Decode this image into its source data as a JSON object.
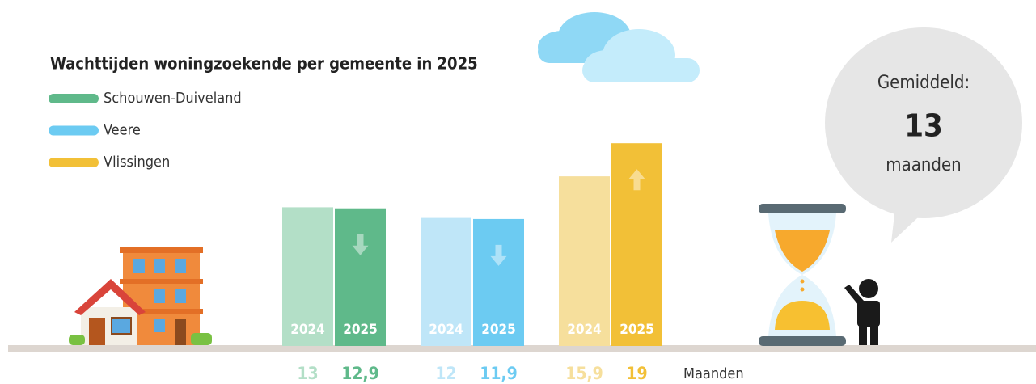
{
  "chart_data": {
    "type": "bar",
    "title": "Wachttijden woningzoekende per gemeente in 2025",
    "categories": [
      "2024",
      "2025"
    ],
    "series": [
      {
        "name": "Schouwen-Duiveland",
        "color": "#5fb98a",
        "light_color": "#b3dfc7",
        "values": [
          13,
          12.9
        ],
        "value_labels": [
          "13",
          "12,9"
        ]
      },
      {
        "name": "Veere",
        "color": "#6ccbf2",
        "light_color": "#bfe6f8",
        "values": [
          12,
          11.9
        ],
        "value_labels": [
          "12",
          "11,9"
        ]
      },
      {
        "name": "Vlissingen",
        "color": "#f2c037",
        "light_color": "#f6df9c",
        "values": [
          15.9,
          19
        ],
        "value_labels": [
          "15,9",
          "19"
        ]
      }
    ],
    "unit": "Maanden",
    "average": {
      "label": "Gemiddeld:",
      "value": 13,
      "unit": "maanden"
    }
  }
}
